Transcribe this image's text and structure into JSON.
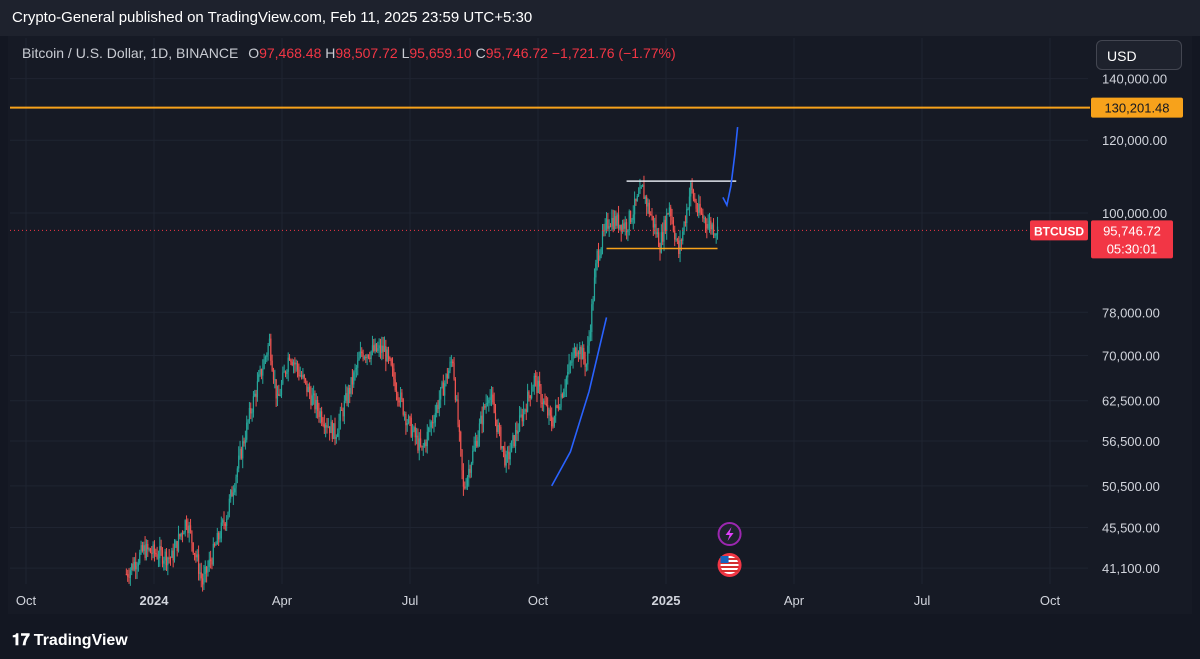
{
  "header": {
    "published": "Crypto-General published on TradingView.com, Feb 11, 2025 23:59 UTC+5:30"
  },
  "symbol": {
    "name": "Bitcoin / U.S. Dollar, 1D, BINANCE",
    "open_label": "O",
    "open": "97,468.48",
    "high_label": "H",
    "high": "98,507.72",
    "low_label": "L",
    "low": "95,659.10",
    "close_label": "C",
    "close": "95,746.72",
    "change": "−1,721.76 (−1.77%)"
  },
  "currency": "USD",
  "footer": {
    "brand": "TradingView",
    "logo": "tv-logo-icon"
  },
  "colors": {
    "background": "#131722",
    "up": "#26a69a",
    "down": "#ef5350",
    "resistance": "#f7a21b",
    "price_label": "#f23645",
    "projection": "#2962ff",
    "channel_top": "#e0e3eb",
    "channel_bottom": "#f7a21b"
  },
  "chart_data": {
    "type": "candlestick",
    "title": "",
    "scale": "log",
    "ylim": [
      39500,
      155000
    ],
    "x_ticks": [
      "Oct",
      "2024",
      "Apr",
      "Jul",
      "Oct",
      "2025",
      "Apr",
      "Jul",
      "Oct"
    ],
    "y_ticks": [
      "140,000.00",
      "120,000.00",
      "100,000.00",
      "78,000.00",
      "70,000.00",
      "62,500.00",
      "56,500.00",
      "50,500.00",
      "45,500.00",
      "41,100.00"
    ],
    "y_tick_values": [
      140000,
      120000,
      100000,
      78000,
      70000,
      62500,
      56500,
      50500,
      45500,
      41100
    ],
    "resistance_level": {
      "value": 130201.48,
      "label": "130,201.48"
    },
    "last_price": {
      "symbol": "BTCUSD",
      "value": 95746.72,
      "label": "95,746.72",
      "countdown": "05:30:01"
    },
    "x_domain": [
      "2023-09-01",
      "2025-11-15"
    ],
    "series_keypoints": [
      [
        "2023-11-27",
        40500
      ],
      [
        "2023-12-10",
        43000
      ],
      [
        "2023-12-31",
        42200
      ],
      [
        "2024-01-11",
        46500
      ],
      [
        "2024-01-23",
        39600
      ],
      [
        "2024-02-10",
        47000
      ],
      [
        "2024-02-28",
        61000
      ],
      [
        "2024-03-13",
        72500
      ],
      [
        "2024-03-19",
        62200
      ],
      [
        "2024-03-28",
        70500
      ],
      [
        "2024-04-17",
        61500
      ],
      [
        "2024-05-01",
        57500
      ],
      [
        "2024-05-21",
        70500
      ],
      [
        "2024-06-07",
        71000
      ],
      [
        "2024-06-24",
        59500
      ],
      [
        "2024-07-05",
        55000
      ],
      [
        "2024-07-28",
        69500
      ],
      [
        "2024-08-05",
        50000
      ],
      [
        "2024-08-24",
        64000
      ],
      [
        "2024-09-06",
        53500
      ],
      [
        "2024-09-27",
        66000
      ],
      [
        "2024-10-10",
        59000
      ],
      [
        "2024-10-29",
        72000
      ],
      [
        "2024-11-05",
        68500
      ],
      [
        "2024-11-13",
        90000
      ],
      [
        "2024-11-22",
        98500
      ],
      [
        "2024-12-05",
        97000
      ],
      [
        "2024-12-17",
        106000
      ],
      [
        "2024-12-30",
        92500
      ],
      [
        "2025-01-06",
        102000
      ],
      [
        "2025-01-13",
        90500
      ],
      [
        "2025-01-22",
        106500
      ],
      [
        "2025-01-27",
        100500
      ],
      [
        "2025-02-04",
        97500
      ],
      [
        "2025-02-11",
        95746
      ]
    ],
    "annotations": {
      "consolidation_top": {
        "from": "2024-12-05",
        "to": "2025-02-25",
        "value": 108300
      },
      "consolidation_bottom": {
        "from": "2024-11-20",
        "to": "2025-02-11",
        "value": 91500
      },
      "projection_past": [
        [
          "2024-10-10",
          50500
        ],
        [
          "2024-10-24",
          55000
        ],
        [
          "2024-11-07",
          64000
        ],
        [
          "2024-11-20",
          77000
        ]
      ],
      "projection_future": [
        [
          "2025-02-15",
          104000
        ],
        [
          "2025-02-18",
          102000
        ],
        [
          "2025-02-21",
          107000
        ],
        [
          "2025-02-24",
          116000
        ],
        [
          "2025-02-26",
          124000
        ]
      ]
    },
    "event_markers": [
      {
        "date": "2025-02-20",
        "icon": "lightning-icon"
      },
      {
        "date": "2025-02-20",
        "icon": "us-flag-icon"
      }
    ]
  }
}
